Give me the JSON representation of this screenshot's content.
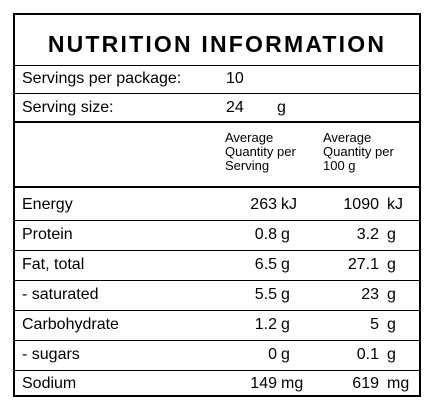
{
  "panel": {
    "title": "NUTRITION INFORMATION",
    "servings_label": "Servings per package:",
    "servings_value": "10",
    "serving_size_label": "Serving size:",
    "serving_size_value": "24",
    "serving_size_unit": "g",
    "col_headers": {
      "per_serving": [
        "Average",
        "Quantity per",
        "Serving"
      ],
      "per_100g": [
        "Average",
        "Quantity per",
        "100 g"
      ]
    },
    "rows": [
      {
        "label": "Energy",
        "serving": "263",
        "serving_unit": "kJ",
        "per100": "1090",
        "per100_unit": "kJ"
      },
      {
        "label": "Protein",
        "serving": "0.8",
        "serving_unit": "g",
        "per100": "3.2",
        "per100_unit": "g"
      },
      {
        "label": "Fat, total",
        "serving": "6.5",
        "serving_unit": "g",
        "per100": "27.1",
        "per100_unit": "g"
      },
      {
        "label": "- saturated",
        "serving": "5.5",
        "serving_unit": "g",
        "per100": "23",
        "per100_unit": "g"
      },
      {
        "label": "Carbohydrate",
        "serving": "1.2",
        "serving_unit": "g",
        "per100": "5",
        "per100_unit": "g"
      },
      {
        "label": "- sugars",
        "serving": "0",
        "serving_unit": "g",
        "per100": "0.1",
        "per100_unit": "g"
      },
      {
        "label": "Sodium",
        "serving": "149",
        "serving_unit": "mg",
        "per100": "619",
        "per100_unit": "mg"
      }
    ]
  }
}
